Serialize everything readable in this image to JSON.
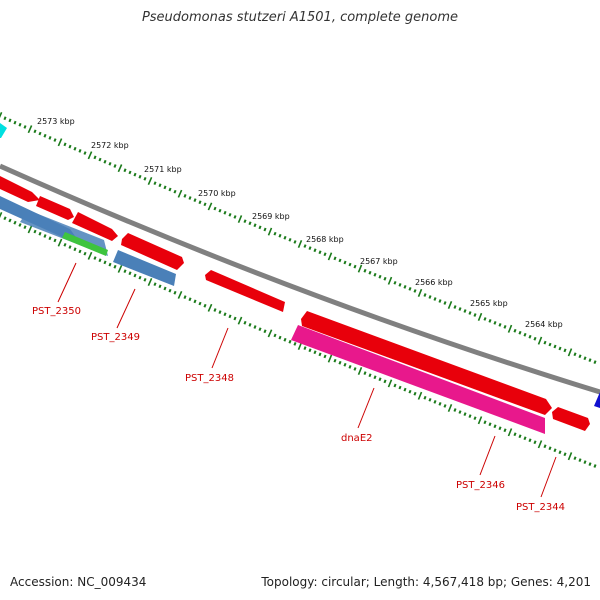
{
  "title": "Pseudomonas stutzeri A1501, complete genome",
  "accession_text": "Accession: NC_009434",
  "summary_text": "Topology: circular; Length: 4,567,418 bp; Genes: 4,201",
  "scale_labels": [
    "2573 kbp",
    "2572 kbp",
    "2571 kbp",
    "2570 kbp",
    "2569 kbp",
    "2568 kbp",
    "2567 kbp",
    "2566 kbp",
    "2565 kbp",
    "2564 kbp"
  ],
  "gene_labels": [
    "PST_2350",
    "PST_2349",
    "PST_2348",
    "dnaE2",
    "PST_2346",
    "PST_2344"
  ],
  "colors": {
    "backbone": "#808080",
    "forward_cds": "#e8000b",
    "blue_feature": "#4a80b8",
    "green_feature": "#3ec43e",
    "pink_feature": "#e8188c",
    "cyan_feature": "#00e0e0",
    "dark_blue_feature": "#1010d0",
    "tick_color": "#1a7a1a",
    "label_color": "#cc0000"
  }
}
